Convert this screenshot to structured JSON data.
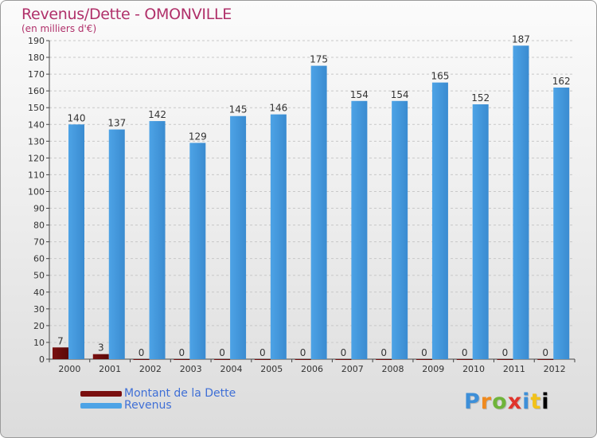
{
  "header": {
    "title": "Revenus/Dette - OMONVILLE",
    "subtitle": "(en milliers d'€)"
  },
  "legend": {
    "items": [
      {
        "label": "Montant de la Dette",
        "color": "#7a0f0f"
      },
      {
        "label": "Revenus",
        "color": "#4da3e6"
      }
    ]
  },
  "logo": {
    "text": "Proxiti",
    "letters": [
      "P",
      "r",
      "o",
      "x",
      "i",
      "t"
    ]
  },
  "colors": {
    "debt": "#7a0f0f",
    "revenue": "#4da3e6",
    "revenue_dark": "#3a8bd0",
    "grid": "#c8c8c8",
    "title": "#b0306a"
  },
  "chart_data": {
    "type": "bar",
    "title": "Revenus/Dette - OMONVILLE",
    "ylabel": "(en milliers d'€)",
    "xlabel": "",
    "ylim": [
      0,
      190
    ],
    "ytick_step": 10,
    "categories": [
      "2000",
      "2001",
      "2002",
      "2003",
      "2004",
      "2005",
      "2006",
      "2007",
      "2008",
      "2009",
      "2010",
      "2011",
      "2012"
    ],
    "series": [
      {
        "name": "Montant de la Dette",
        "values": [
          7,
          3,
          0,
          0,
          0,
          0,
          0,
          0,
          0,
          0,
          0,
          0,
          0
        ]
      },
      {
        "name": "Revenus",
        "values": [
          140,
          137,
          142,
          129,
          145,
          146,
          175,
          154,
          154,
          165,
          152,
          187,
          162
        ]
      }
    ],
    "legend_position": "bottom-left",
    "grid": true
  }
}
